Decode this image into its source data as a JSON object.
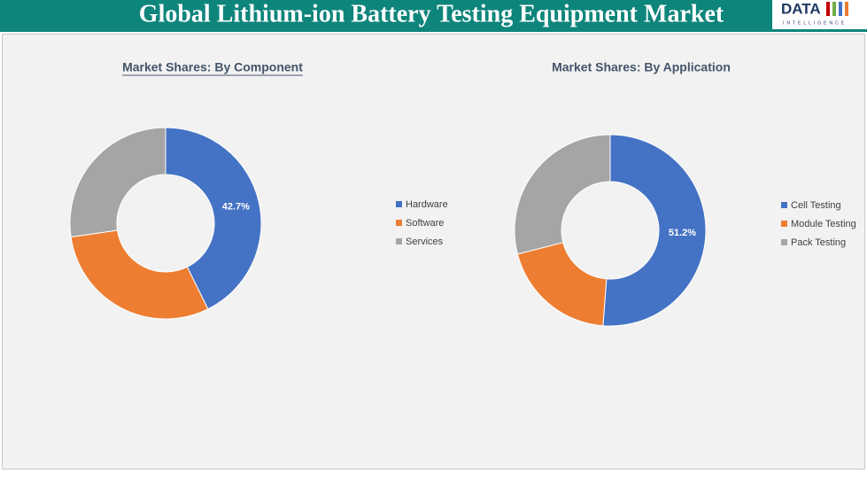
{
  "header": {
    "title": "Global Lithium-ion Battery Testing Equipment Market",
    "logo": {
      "text": "DATA",
      "sub": "INTELLIGENCE"
    }
  },
  "chart_data": [
    {
      "type": "donut",
      "title": "Market Shares: By Component",
      "categories": [
        "Hardware",
        "Software",
        "Services"
      ],
      "values": [
        42.7,
        30.0,
        27.3
      ],
      "value_labels": [
        "42.7%",
        null,
        null
      ],
      "colors": [
        "#4472c4",
        "#ed7d31",
        "#a5a5a5"
      ],
      "legend": "right"
    },
    {
      "type": "donut",
      "title": "Market Shares: By Application",
      "categories": [
        "Cell Testing",
        "Module Testing",
        "Pack Testing"
      ],
      "values": [
        51.2,
        19.8,
        29.0
      ],
      "value_labels": [
        "51.2%",
        null,
        null
      ],
      "colors": [
        "#4472c4",
        "#ed7d31",
        "#a5a5a5"
      ],
      "legend": "right"
    }
  ]
}
